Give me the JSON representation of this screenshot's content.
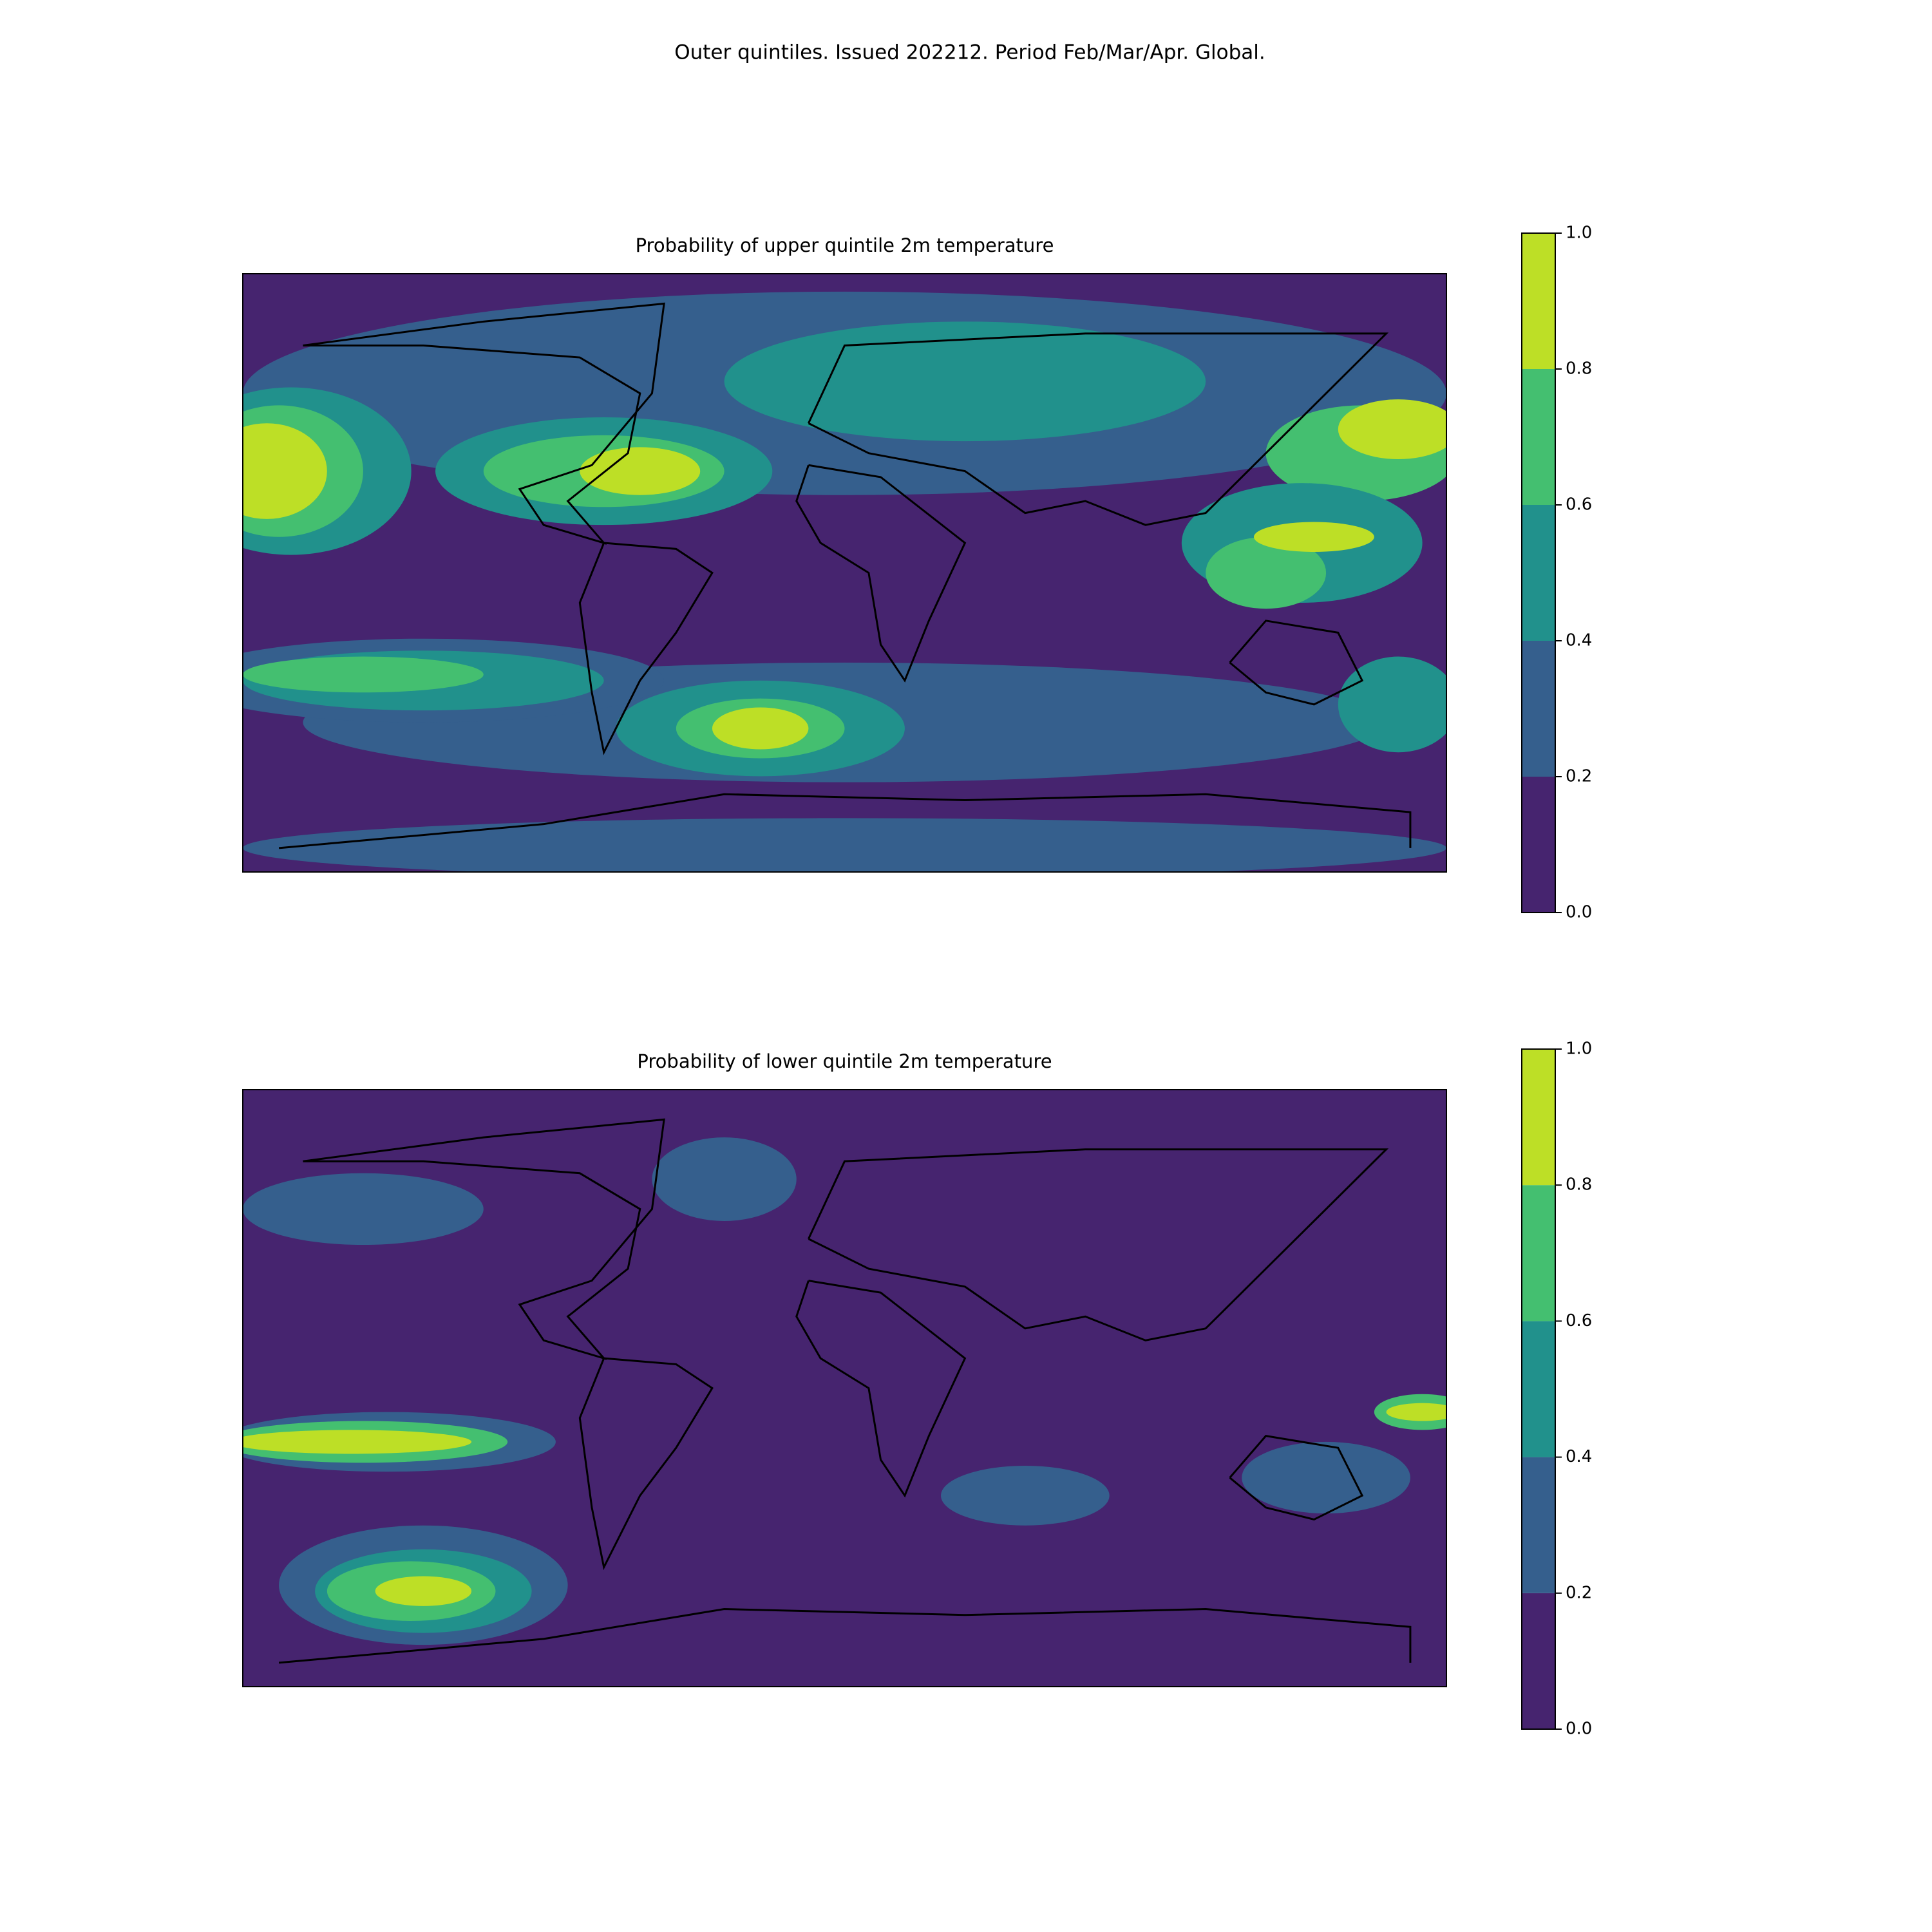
{
  "title": "Outer quintiles. Issued 202212. Period Feb/Mar/Apr. Global.",
  "panels": [
    {
      "title": "Probability of upper quintile 2m temperature",
      "colorbar": {
        "ticks": [
          {
            "value": 0,
            "label": "0.0"
          },
          0.2,
          0.4,
          0.6,
          0.8,
          {
            "value": 1,
            "label": "1.0"
          }
        ],
        "colors": [
          "#46246f",
          "#355f8d",
          "#21918c",
          "#44bf70",
          "#bddf26"
        ]
      }
    },
    {
      "title": "Probability of lower quintile 2m temperature",
      "colorbar": {
        "ticks": [
          {
            "value": 0,
            "label": "0.0"
          },
          0.2,
          0.4,
          0.6,
          0.8,
          {
            "value": 1,
            "label": "1.0"
          }
        ],
        "colors": [
          "#46246f",
          "#355f8d",
          "#21918c",
          "#44bf70",
          "#bddf26"
        ]
      }
    }
  ]
}
